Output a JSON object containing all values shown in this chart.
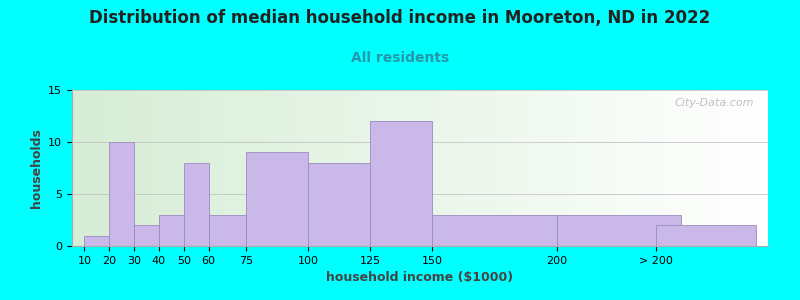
{
  "title": "Distribution of median household income in Mooreton, ND in 2022",
  "subtitle": "All residents",
  "xlabel": "household income ($1000)",
  "ylabel": "households",
  "background_color": "#00FFFF",
  "bar_color": "#c9b8e8",
  "bar_edge_color": "#9b8abf",
  "watermark": "City-Data.com",
  "ylim": [
    0,
    15
  ],
  "yticks": [
    0,
    5,
    10,
    15
  ],
  "bar_labels": [
    "10",
    "20",
    "30",
    "40",
    "50",
    "60",
    "75",
    "100",
    "125",
    "150",
    "200",
    "> 200"
  ],
  "bar_values": [
    1,
    10,
    2,
    3,
    8,
    3,
    9,
    8,
    12,
    3,
    3,
    2
  ],
  "bar_left_edges": [
    10,
    20,
    30,
    40,
    50,
    60,
    75,
    100,
    125,
    150,
    200,
    240
  ],
  "bar_widths": [
    10,
    10,
    10,
    10,
    10,
    15,
    25,
    25,
    25,
    50,
    50,
    40
  ],
  "title_fontsize": 12,
  "subtitle_fontsize": 10,
  "axis_label_fontsize": 9,
  "tick_fontsize": 8,
  "watermark_fontsize": 8
}
